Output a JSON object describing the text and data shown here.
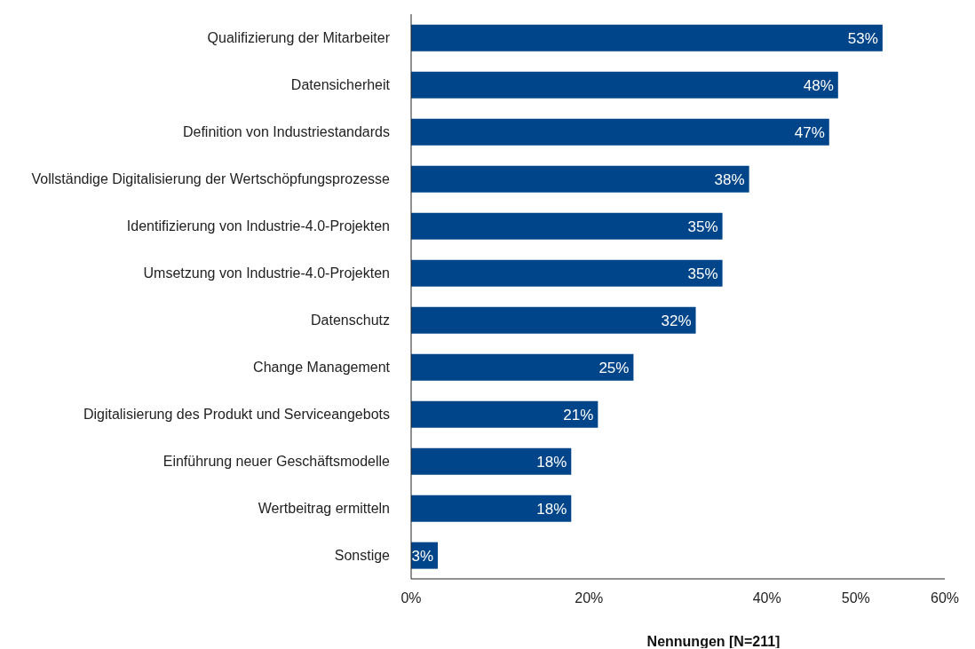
{
  "chart_data": {
    "type": "bar",
    "orientation": "horizontal",
    "xlabel": "Nennungen [N=211]",
    "categories": [
      "Qualifizierung der Mitarbeiter",
      "Datensicherheit",
      "Definition von Industriestandards",
      "Vollständige Digitalisierung der Wertschöpfungsprozesse",
      "Identifizierung von Industrie-4.0-Projekten",
      "Umsetzung von Industrie-4.0-Projekten",
      "Datenschutz",
      "Change Management",
      "Digitalisierung des Produkt und Serviceangebots",
      "Einführung neuer Geschäftsmodelle",
      "Wertbeitrag ermitteln",
      "Sonstige"
    ],
    "values": [
      53,
      48,
      47,
      38,
      35,
      35,
      32,
      25,
      21,
      18,
      18,
      3
    ],
    "value_labels": [
      "53%",
      "48%",
      "47%",
      "38%",
      "35%",
      "35%",
      "32%",
      "25%",
      "21%",
      "18%",
      "18%",
      "3%"
    ],
    "color": "#00458a",
    "xlim": [
      0,
      60
    ],
    "xticks": [
      {
        "value": 0,
        "label": "0%"
      },
      {
        "value": 20,
        "label": "20%"
      },
      {
        "value": 40,
        "label": "40%"
      },
      {
        "value": 50,
        "label": "50%"
      },
      {
        "value": 60,
        "label": "60%"
      }
    ],
    "grid": false,
    "legend": false
  }
}
